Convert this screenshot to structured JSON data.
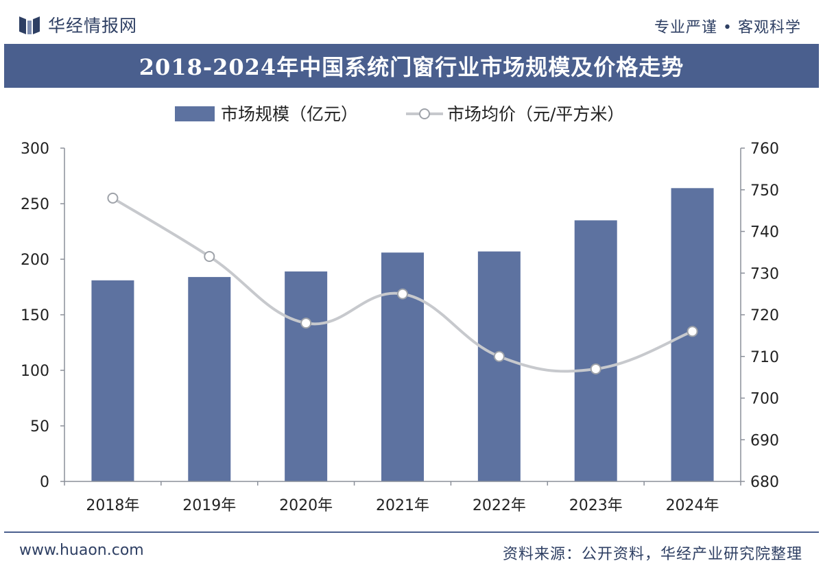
{
  "header": {
    "brand": "华经情报网",
    "tagline": "专业严谨 • 客观科学"
  },
  "footer": {
    "website": "www.huaon.com",
    "source": "资料来源：公开资料，华经产业研究院整理"
  },
  "colors": {
    "title_bar": "#4a5f8e",
    "bar": "#5d72a0",
    "line": "#c7c9cd",
    "text": "#2e3f63"
  },
  "chart_data": {
    "type": "bar",
    "title": "2018-2024年中国系统门窗行业市场规模及价格走势",
    "categories": [
      "2018年",
      "2019年",
      "2020年",
      "2021年",
      "2022年",
      "2023年",
      "2024年"
    ],
    "series": [
      {
        "name": "市场规模（亿元）",
        "type": "bar",
        "axis": "left",
        "values": [
          181,
          184,
          189,
          206,
          207,
          235,
          264
        ]
      },
      {
        "name": "市场均价（元/平方米）",
        "type": "line",
        "axis": "right",
        "values": [
          748,
          734,
          718,
          725,
          710,
          707,
          716
        ]
      }
    ],
    "left_axis": {
      "min": 0,
      "max": 300,
      "ticks": [
        "0",
        "50",
        "100",
        "150",
        "200",
        "250",
        "300"
      ]
    },
    "right_axis": {
      "min": 680,
      "max": 760,
      "ticks": [
        "680",
        "690",
        "700",
        "710",
        "720",
        "730",
        "740",
        "750",
        "760"
      ]
    },
    "legend_position": "top-center",
    "grid": false
  }
}
